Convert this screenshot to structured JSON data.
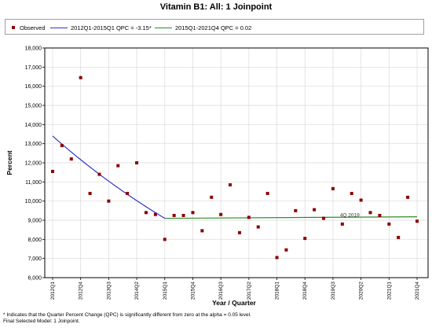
{
  "page": {
    "title": "Vitamin B1: All: 1 Joinpoint"
  },
  "legend": {
    "observed": "Observed",
    "segment1": "2012Q1-2015Q1 QPC = -3.15*",
    "segment2": "2015Q1-2021Q4 QPC = 0.02"
  },
  "footnote": "* Indicates that the Quarter Percent Change (QPC) is significantly different from zero at the alpha = 0.05 level.",
  "final_model": "Final Selected Model: 1 Joinpoint.",
  "colors": {
    "observed": "#8b0000",
    "segment1": "#3333cc",
    "segment2": "#2e8b2e",
    "grid": "#d9d9d9"
  },
  "chart_data": {
    "type": "scatter",
    "title": "Vitamin B1: All: 1 Joinpoint",
    "xlabel": "Year / Quarter",
    "ylabel": "Percent",
    "ylim": [
      6000,
      18000
    ],
    "yticks": [
      "6,000",
      "7,000",
      "8,000",
      "9,000",
      "10,000",
      "11,000",
      "12,000",
      "13,000",
      "14,000",
      "15,000",
      "16,000",
      "17,000",
      "18,000"
    ],
    "xtick_labels": [
      "2012Q1",
      "2012Q4",
      "2013Q3",
      "2014Q2",
      "2015Q1",
      "2015Q4",
      "2016Q3",
      "2017Q2",
      "2018Q1",
      "2018Q4",
      "2019Q3",
      "2020Q2",
      "2021Q1",
      "2021Q4"
    ],
    "x": [
      "2012Q1",
      "2012Q2",
      "2012Q3",
      "2012Q4",
      "2013Q1",
      "2013Q2",
      "2013Q3",
      "2013Q4",
      "2014Q1",
      "2014Q2",
      "2014Q3",
      "2014Q4",
      "2015Q1",
      "2015Q2",
      "2015Q3",
      "2015Q4",
      "2016Q1",
      "2016Q2",
      "2016Q3",
      "2016Q4",
      "2017Q1",
      "2017Q2",
      "2017Q3",
      "2017Q4",
      "2018Q1",
      "2018Q2",
      "2018Q3",
      "2018Q4",
      "2019Q1",
      "2019Q2",
      "2019Q3",
      "2019Q4",
      "2020Q1",
      "2020Q2",
      "2020Q3",
      "2020Q4",
      "2021Q1",
      "2021Q2",
      "2021Q3",
      "2021Q4"
    ],
    "series": [
      {
        "name": "Observed",
        "values": [
          11550,
          12900,
          12200,
          16450,
          10400,
          11400,
          10000,
          11850,
          10400,
          12000,
          9400,
          9300,
          8000,
          9250,
          9250,
          9400,
          8450,
          10200,
          9300,
          10850,
          8350,
          9150,
          8650,
          10400,
          7050,
          7450,
          9500,
          8050,
          9550,
          9100,
          10650,
          8800,
          10400,
          10050,
          9400,
          9250,
          8800,
          8100,
          10200,
          8950
        ]
      },
      {
        "name": "2012Q1-2015Q1 QPC = -3.15*",
        "x": [
          "2012Q1",
          "2015Q1"
        ],
        "values": [
          13400,
          9100
        ]
      },
      {
        "name": "2015Q1-2021Q4 QPC = 0.02",
        "x": [
          "2015Q1",
          "2021Q4"
        ],
        "values": [
          9100,
          9180
        ]
      }
    ],
    "annotations": [
      {
        "text": "4Q 2019",
        "x": "2019Q4",
        "y": 9150
      }
    ],
    "grid": true,
    "legend_position": "top"
  }
}
